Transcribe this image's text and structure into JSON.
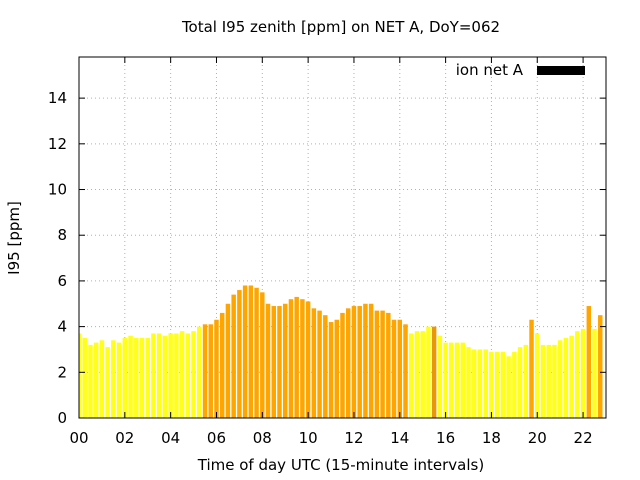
{
  "chart_data": {
    "type": "bar",
    "title": "Total I95 zenith [ppm] on NET A, DoY=062",
    "xlabel": "Time of day UTC (15-minute intervals)",
    "ylabel": "I95 [ppm]",
    "xlim": [
      0,
      23
    ],
    "ylim": [
      0,
      15.8
    ],
    "x_ticks": [
      "00",
      "02",
      "04",
      "06",
      "08",
      "10",
      "12",
      "14",
      "16",
      "18",
      "20",
      "22"
    ],
    "y_ticks": [
      "0",
      "2",
      "4",
      "6",
      "8",
      "10",
      "12",
      "14"
    ],
    "grid": true,
    "legend": {
      "position": "top-right",
      "entries": [
        {
          "label": "ion net A",
          "color": "#000000"
        }
      ]
    },
    "interval_hours": 0.25,
    "colors": {
      "low": "#ffff1a",
      "high": "#ffa500",
      "mid": "#ffd21a",
      "peak": "#e8960a",
      "grid": "#b0b0b0"
    },
    "series": [
      {
        "values": [
          3.7,
          3.5,
          3.2,
          3.3,
          3.4,
          3.1,
          3.4,
          3.3,
          3.5,
          3.6,
          3.5,
          3.5,
          3.5,
          3.7,
          3.7,
          3.6,
          3.7,
          3.7,
          3.8,
          3.7,
          3.8,
          4.0,
          4.1,
          4.1,
          4.3,
          4.6,
          5.0,
          5.4,
          5.6,
          5.8,
          5.8,
          5.7,
          5.5,
          5.0,
          4.9,
          4.9,
          5.0,
          5.2,
          5.3,
          5.2,
          5.1,
          4.8,
          4.7,
          4.5,
          4.2,
          4.3,
          4.6,
          4.8,
          4.9,
          4.9,
          5.0,
          5.0,
          4.7,
          4.7,
          4.6,
          4.3,
          4.3,
          4.1,
          3.7,
          3.8,
          3.8,
          4.0,
          4.0,
          3.6,
          3.3,
          3.3,
          3.3,
          3.3,
          3.1,
          3.0,
          3.0,
          3.0,
          2.9,
          2.9,
          2.9,
          2.7,
          2.9,
          3.1,
          3.2,
          4.3,
          3.7,
          3.2,
          3.2,
          3.2,
          3.4,
          3.5,
          3.6,
          3.8,
          3.9,
          4.9,
          3.9,
          4.5
        ],
        "bar_colors": [
          "#ffff1a",
          "#ffff1a",
          "#ffff1a",
          "#ffff1a",
          "#ffff1a",
          "#ffff1a",
          "#ffff1a",
          "#ffff1a",
          "#ffff1a",
          "#ffff1a",
          "#ffff1a",
          "#ffff1a",
          "#ffff1a",
          "#ffff1a",
          "#ffff1a",
          "#ffff1a",
          "#ffff1a",
          "#ffff1a",
          "#ffff1a",
          "#ffff1a",
          "#ffff1a",
          "#ffff1a",
          "#ffa500",
          "#ffa500",
          "#ffa500",
          "#ffa500",
          "#ffa500",
          "#ffa500",
          "#ffa500",
          "#ffa500",
          "#ffa500",
          "#ffa500",
          "#ffa500",
          "#ffa500",
          "#ffa500",
          "#ffa500",
          "#ffa500",
          "#ffa500",
          "#ffa500",
          "#ffa500",
          "#ffa500",
          "#ffa500",
          "#ffa500",
          "#ffa500",
          "#ffa500",
          "#ffa500",
          "#ffa500",
          "#ffa500",
          "#ffa500",
          "#ffa500",
          "#ffa500",
          "#ffa500",
          "#ffa500",
          "#ffa500",
          "#ffa500",
          "#ffa500",
          "#ffa500",
          "#ffa500",
          "#ffff1a",
          "#ffff1a",
          "#ffff1a",
          "#ffff1a",
          "#e8960a",
          "#ffff1a",
          "#ffff1a",
          "#ffff1a",
          "#ffff1a",
          "#ffff1a",
          "#ffff1a",
          "#ffff1a",
          "#ffff1a",
          "#ffff1a",
          "#ffff1a",
          "#ffff1a",
          "#ffff1a",
          "#ffff1a",
          "#ffff1a",
          "#ffff1a",
          "#ffff1a",
          "#ffa500",
          "#ffff1a",
          "#ffff1a",
          "#ffff1a",
          "#ffff1a",
          "#ffff1a",
          "#ffff1a",
          "#ffff1a",
          "#ffff1a",
          "#ffff1a",
          "#ffa500",
          "#ffff1a",
          "#ffa500"
        ]
      }
    ]
  }
}
